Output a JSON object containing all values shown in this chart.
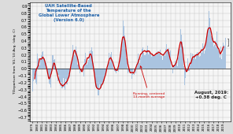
{
  "title_lines": [
    "UAH Satellite-Based",
    "Temperature of the",
    "Global Lower Atmosphere",
    "(Version 6.0)"
  ],
  "title_color": "#1a5fa8",
  "ylabel": "T Departure from '81-'10 Avg. (deg. C)",
  "annotation_text": "August, 2019:\n+0.38 deg. C",
  "annotation_color": "#222222",
  "running_avg_label": "Running, centered\n13-month average",
  "running_avg_color": "#cc0000",
  "bar_color": "#aac4e0",
  "bar_edge_color": "#6699cc",
  "line_color": "#cc0000",
  "zero_line_color": "#000000",
  "plot_bg_color": "#f5f5f5",
  "fig_bg_color": "#dcdcdc",
  "ylim": [
    -0.75,
    0.95
  ],
  "yticks": [
    -0.7,
    -0.6,
    -0.5,
    -0.4,
    -0.3,
    -0.2,
    -0.1,
    0.0,
    0.1,
    0.2,
    0.3,
    0.4,
    0.5,
    0.6,
    0.7,
    0.8,
    0.9
  ],
  "start_year": 1979,
  "end_year": 2019
}
